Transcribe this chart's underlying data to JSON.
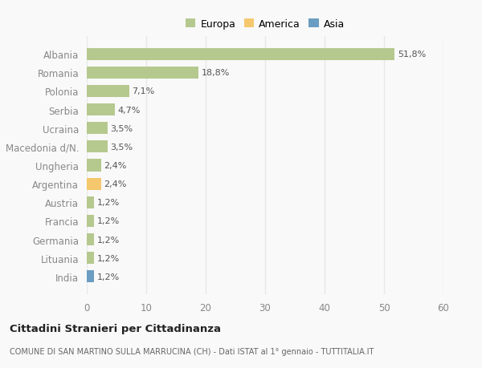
{
  "countries": [
    "Albania",
    "Romania",
    "Polonia",
    "Serbia",
    "Ucraina",
    "Macedonia d/N.",
    "Ungheria",
    "Argentina",
    "Austria",
    "Francia",
    "Germania",
    "Lituania",
    "India"
  ],
  "values": [
    51.8,
    18.8,
    7.1,
    4.7,
    3.5,
    3.5,
    2.4,
    2.4,
    1.2,
    1.2,
    1.2,
    1.2,
    1.2
  ],
  "labels": [
    "51,8%",
    "18,8%",
    "7,1%",
    "4,7%",
    "3,5%",
    "3,5%",
    "2,4%",
    "2,4%",
    "1,2%",
    "1,2%",
    "1,2%",
    "1,2%",
    "1,2%"
  ],
  "categories": [
    "Europa",
    "America",
    "Asia"
  ],
  "bar_colors": [
    "#b5c98e",
    "#b5c98e",
    "#b5c98e",
    "#b5c98e",
    "#b5c98e",
    "#b5c98e",
    "#b5c98e",
    "#f5c86e",
    "#b5c98e",
    "#b5c98e",
    "#b5c98e",
    "#b5c98e",
    "#6b9dc2"
  ],
  "legend_colors": [
    "#b5c98e",
    "#f5c86e",
    "#6b9dc2"
  ],
  "title1": "Cittadini Stranieri per Cittadinanza",
  "title2": "COMUNE DI SAN MARTINO SULLA MARRUCINA (CH) - Dati ISTAT al 1° gennaio - TUTTITALIA.IT",
  "xlim": [
    0,
    60
  ],
  "xticks": [
    0,
    10,
    20,
    30,
    40,
    50,
    60
  ],
  "background_color": "#f9f9f9",
  "grid_color": "#e8e8e8",
  "bar_height": 0.65
}
